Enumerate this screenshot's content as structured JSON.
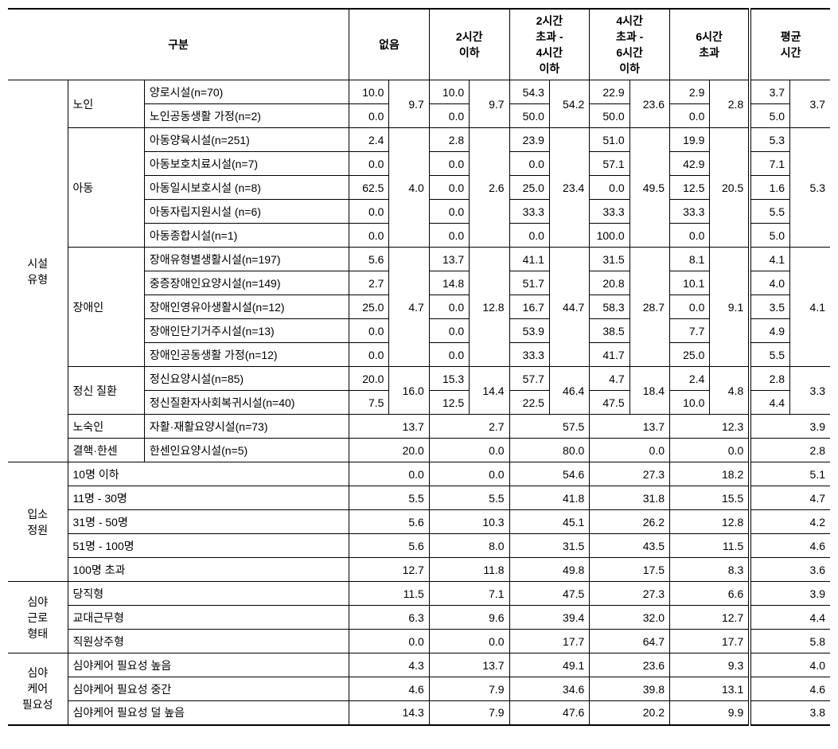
{
  "header": {
    "gubun": "구분",
    "c1": "없음",
    "c2": "2시간\n이하",
    "c3": "2시간\n초과 -\n4시간\n이하",
    "c4": "4시간\n초과 -\n6시간\n이하",
    "c5": "6시간\n초과",
    "c6": "평균\n시간"
  },
  "groups": [
    {
      "key": "facility",
      "label": "시설\n유형",
      "subgroups": [
        {
          "label": "노인",
          "agg": {
            "c1": "9.7",
            "c2": "9.7",
            "c3": "54.2",
            "c4": "23.6",
            "c5": "2.8",
            "c6": "3.7"
          },
          "rows": [
            {
              "label": "양로시설(n=70)",
              "c1": "10.0",
              "c2": "10.0",
              "c3": "54.3",
              "c4": "22.9",
              "c5": "2.9",
              "c6": "3.7"
            },
            {
              "label": "노인공동생활 가정(n=2)",
              "c1": "0.0",
              "c2": "0.0",
              "c3": "50.0",
              "c4": "50.0",
              "c5": "0.0",
              "c6": "5.0"
            }
          ]
        },
        {
          "label": "아동",
          "agg": {
            "c1": "4.0",
            "c2": "2.6",
            "c3": "23.4",
            "c4": "49.5",
            "c5": "20.5",
            "c6": "5.3"
          },
          "rows": [
            {
              "label": "아동양육시설(n=251)",
              "c1": "2.4",
              "c2": "2.8",
              "c3": "23.9",
              "c4": "51.0",
              "c5": "19.9",
              "c6": "5.3"
            },
            {
              "label": "아동보호치료시설(n=7)",
              "c1": "0.0",
              "c2": "0.0",
              "c3": "0.0",
              "c4": "57.1",
              "c5": "42.9",
              "c6": "7.1"
            },
            {
              "label": "아동일시보호시설 (n=8)",
              "c1": "62.5",
              "c2": "0.0",
              "c3": "25.0",
              "c4": "0.0",
              "c5": "12.5",
              "c6": "1.6"
            },
            {
              "label": "아동자립지원시설 (n=6)",
              "c1": "0.0",
              "c2": "0.0",
              "c3": "33.3",
              "c4": "33.3",
              "c5": "33.3",
              "c6": "5.5"
            },
            {
              "label": "아동종합시설(n=1)",
              "c1": "0.0",
              "c2": "0.0",
              "c3": "0.0",
              "c4": "100.0",
              "c5": "0.0",
              "c6": "5.0"
            }
          ]
        },
        {
          "label": "장애인",
          "agg": {
            "c1": "4.7",
            "c2": "12.8",
            "c3": "44.7",
            "c4": "28.7",
            "c5": "9.1",
            "c6": "4.1"
          },
          "rows": [
            {
              "label": "장애유형별생활시설(n=197)",
              "c1": "5.6",
              "c2": "13.7",
              "c3": "41.1",
              "c4": "31.5",
              "c5": "8.1",
              "c6": "4.1"
            },
            {
              "label": "중증장애인요양시설(n=149)",
              "c1": "2.7",
              "c2": "14.8",
              "c3": "51.7",
              "c4": "20.8",
              "c5": "10.1",
              "c6": "4.0"
            },
            {
              "label": "장애인영유아생활시설(n=12)",
              "c1": "25.0",
              "c2": "0.0",
              "c3": "16.7",
              "c4": "58.3",
              "c5": "0.0",
              "c6": "3.5"
            },
            {
              "label": "장애인단기거주시설(n=13)",
              "c1": "0.0",
              "c2": "0.0",
              "c3": "53.9",
              "c4": "38.5",
              "c5": "7.7",
              "c6": "4.9"
            },
            {
              "label": "장애인공동생활 가정(n=12)",
              "c1": "0.0",
              "c2": "0.0",
              "c3": "33.3",
              "c4": "41.7",
              "c5": "25.0",
              "c6": "5.5"
            }
          ]
        },
        {
          "label": "정신 질환",
          "agg": {
            "c1": "16.0",
            "c2": "14.4",
            "c3": "46.4",
            "c4": "18.4",
            "c5": "4.8",
            "c6": "3.3"
          },
          "rows": [
            {
              "label": "정신요양시설(n=85)",
              "c1": "20.0",
              "c2": "15.3",
              "c3": "57.7",
              "c4": "4.7",
              "c5": "2.4",
              "c6": "2.8"
            },
            {
              "label": "정신질환자사회복귀시설(n=40)",
              "c1": "7.5",
              "c2": "12.5",
              "c3": "22.5",
              "c4": "47.5",
              "c5": "10.0",
              "c6": "4.4"
            }
          ]
        },
        {
          "label": "노숙인",
          "singleRow": {
            "label": "자활·재활요양시설(n=73)",
            "c1": "13.7",
            "c2": "2.7",
            "c3": "57.5",
            "c4": "13.7",
            "c5": "12.3",
            "c6": "3.9"
          }
        },
        {
          "label": "결핵·한센",
          "singleRow": {
            "label": "한센인요양시설(n=5)",
            "c1": "20.0",
            "c2": "0.0",
            "c3": "80.0",
            "c4": "0.0",
            "c5": "0.0",
            "c6": "2.8"
          }
        }
      ]
    },
    {
      "key": "capacity",
      "label": "입소\n정원",
      "flatRows": [
        {
          "label": "10명 이하",
          "c1": "0.0",
          "c2": "0.0",
          "c3": "54.6",
          "c4": "27.3",
          "c5": "18.2",
          "c6": "5.1"
        },
        {
          "label": "11명 - 30명",
          "c1": "5.5",
          "c2": "5.5",
          "c3": "41.8",
          "c4": "31.8",
          "c5": "15.5",
          "c6": "4.7"
        },
        {
          "label": "31명 - 50명",
          "c1": "5.6",
          "c2": "10.3",
          "c3": "45.1",
          "c4": "26.2",
          "c5": "12.8",
          "c6": "4.2"
        },
        {
          "label": "51명 - 100명",
          "c1": "5.6",
          "c2": "8.0",
          "c3": "31.5",
          "c4": "43.5",
          "c5": "11.5",
          "c6": "4.6"
        },
        {
          "label": "100명 초과",
          "c1": "12.7",
          "c2": "11.8",
          "c3": "49.8",
          "c4": "17.5",
          "c5": "8.3",
          "c6": "3.6"
        }
      ]
    },
    {
      "key": "night_work",
      "label": "심야\n근로\n형태",
      "flatRows": [
        {
          "label": "당직형",
          "c1": "11.5",
          "c2": "7.1",
          "c3": "47.5",
          "c4": "27.3",
          "c5": "6.6",
          "c6": "3.9"
        },
        {
          "label": "교대근무형",
          "c1": "6.3",
          "c2": "9.6",
          "c3": "39.4",
          "c4": "32.0",
          "c5": "12.7",
          "c6": "4.4"
        },
        {
          "label": "직원상주형",
          "c1": "0.0",
          "c2": "0.0",
          "c3": "17.7",
          "c4": "64.7",
          "c5": "17.7",
          "c6": "5.8"
        }
      ]
    },
    {
      "key": "night_care",
      "label": "심야\n케어\n필요성",
      "flatRows": [
        {
          "label": "심야케어 필요성 높음",
          "c1": "4.3",
          "c2": "13.7",
          "c3": "49.1",
          "c4": "23.6",
          "c5": "9.3",
          "c6": "4.0"
        },
        {
          "label": "심야케어 필요성 중간",
          "c1": "4.6",
          "c2": "7.9",
          "c3": "34.6",
          "c4": "39.8",
          "c5": "13.1",
          "c6": "4.6"
        },
        {
          "label": "심야케어 필요성 덜 높음",
          "c1": "14.3",
          "c2": "7.9",
          "c3": "47.6",
          "c4": "20.2",
          "c5": "9.9",
          "c6": "3.8"
        }
      ]
    }
  ]
}
